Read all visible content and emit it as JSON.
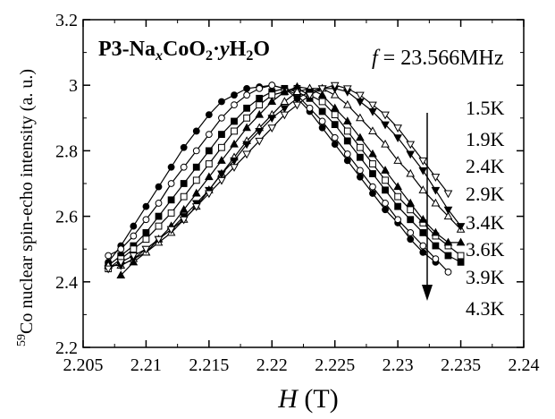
{
  "chart_data": {
    "type": "line",
    "title_parts": {
      "a": "P3-Na",
      "x": "x",
      "b": "CoO",
      "two": "2",
      "dot": "·",
      "y": "y",
      "h": "H",
      "two2": "2",
      "o": "O"
    },
    "frequency_label": {
      "f": "f",
      "rest": " = 23.566MHz"
    },
    "xlabel": {
      "H": "H",
      "unit": " (T)"
    },
    "ylabel": {
      "sup": "59",
      "text": "Co nuclear spin-echo intensity (a. u.)"
    },
    "xlim": [
      2.205,
      2.24
    ],
    "ylim": [
      2.2,
      3.2
    ],
    "x_ticks": [
      "2.205",
      "2.21",
      "2.215",
      "2.22",
      "2.225",
      "2.23",
      "2.235",
      "2.24"
    ],
    "y_ticks": [
      "2.2",
      "2.4",
      "2.6",
      "2.8",
      "3",
      "3.2"
    ],
    "temperature_labels": [
      "1.5K",
      "1.9K",
      "2.4K",
      "2.9K",
      "3.4K",
      "3.6K",
      "3.9K",
      "4.3K"
    ],
    "arrow": "decreasing temperature order along labels",
    "series": [
      {
        "name": "1.5K",
        "marker": "circle",
        "filled": true,
        "x": [
          2.207,
          2.208,
          2.209,
          2.21,
          2.211,
          2.212,
          2.213,
          2.214,
          2.215,
          2.216,
          2.217,
          2.218,
          2.219,
          2.22,
          2.221,
          2.222,
          2.223,
          2.224,
          2.225,
          2.226,
          2.227,
          2.228,
          2.229,
          2.23,
          2.231,
          2.232,
          2.233
        ],
        "y": [
          2.46,
          2.51,
          2.57,
          2.63,
          2.69,
          2.75,
          2.81,
          2.86,
          2.91,
          2.95,
          2.97,
          2.99,
          2.995,
          3.0,
          2.99,
          2.96,
          2.92,
          2.87,
          2.82,
          2.77,
          2.72,
          2.67,
          2.62,
          2.58,
          2.53,
          2.49,
          2.46
        ]
      },
      {
        "name": "1.9K",
        "marker": "circle",
        "filled": false,
        "x": [
          2.207,
          2.208,
          2.209,
          2.21,
          2.211,
          2.212,
          2.213,
          2.214,
          2.215,
          2.216,
          2.217,
          2.218,
          2.219,
          2.22,
          2.221,
          2.222,
          2.223,
          2.224,
          2.225,
          2.226,
          2.227,
          2.228,
          2.229,
          2.23,
          2.231,
          2.232,
          2.233,
          2.234
        ],
        "y": [
          2.48,
          2.5,
          2.54,
          2.59,
          2.64,
          2.7,
          2.75,
          2.8,
          2.85,
          2.9,
          2.94,
          2.97,
          2.99,
          3.0,
          2.99,
          2.97,
          2.93,
          2.89,
          2.84,
          2.79,
          2.74,
          2.69,
          2.64,
          2.59,
          2.55,
          2.51,
          2.47,
          2.43
        ]
      },
      {
        "name": "2.4K",
        "marker": "square",
        "filled": true,
        "x": [
          2.207,
          2.208,
          2.209,
          2.21,
          2.211,
          2.212,
          2.213,
          2.214,
          2.215,
          2.216,
          2.217,
          2.218,
          2.219,
          2.22,
          2.221,
          2.222,
          2.223,
          2.224,
          2.225,
          2.226,
          2.227,
          2.228,
          2.229,
          2.23,
          2.231,
          2.232,
          2.233,
          2.234,
          2.235
        ],
        "y": [
          2.45,
          2.48,
          2.51,
          2.55,
          2.6,
          2.65,
          2.7,
          2.75,
          2.8,
          2.85,
          2.89,
          2.93,
          2.96,
          2.98,
          2.99,
          2.98,
          2.96,
          2.92,
          2.88,
          2.83,
          2.78,
          2.73,
          2.68,
          2.63,
          2.59,
          2.55,
          2.51,
          2.48,
          2.46
        ]
      },
      {
        "name": "2.9K",
        "marker": "square",
        "filled": false,
        "x": [
          2.207,
          2.208,
          2.209,
          2.21,
          2.211,
          2.212,
          2.213,
          2.214,
          2.215,
          2.216,
          2.217,
          2.218,
          2.219,
          2.22,
          2.221,
          2.222,
          2.223,
          2.224,
          2.225,
          2.226,
          2.227,
          2.228,
          2.229,
          2.23,
          2.231,
          2.232,
          2.233,
          2.234,
          2.235
        ],
        "y": [
          2.44,
          2.47,
          2.5,
          2.53,
          2.57,
          2.61,
          2.66,
          2.71,
          2.76,
          2.81,
          2.86,
          2.9,
          2.94,
          2.97,
          2.98,
          2.99,
          2.97,
          2.95,
          2.91,
          2.86,
          2.81,
          2.76,
          2.71,
          2.66,
          2.62,
          2.58,
          2.54,
          2.51,
          2.48
        ]
      },
      {
        "name": "3.4K",
        "marker": "triangle",
        "filled": true,
        "x": [
          2.208,
          2.209,
          2.21,
          2.211,
          2.212,
          2.213,
          2.214,
          2.215,
          2.216,
          2.217,
          2.218,
          2.219,
          2.22,
          2.221,
          2.222,
          2.223,
          2.224,
          2.225,
          2.226,
          2.227,
          2.228,
          2.229,
          2.23,
          2.231,
          2.232,
          2.233,
          2.234,
          2.235
        ],
        "y": [
          2.42,
          2.46,
          2.49,
          2.53,
          2.57,
          2.62,
          2.67,
          2.72,
          2.77,
          2.82,
          2.87,
          2.91,
          2.95,
          2.98,
          2.995,
          2.99,
          2.97,
          2.93,
          2.89,
          2.84,
          2.79,
          2.74,
          2.69,
          2.64,
          2.59,
          2.55,
          2.52,
          2.52
        ]
      },
      {
        "name": "3.6K",
        "marker": "triangle",
        "filled": false,
        "x": [
          2.207,
          2.208,
          2.209,
          2.21,
          2.211,
          2.212,
          2.213,
          2.214,
          2.215,
          2.216,
          2.217,
          2.218,
          2.219,
          2.22,
          2.221,
          2.222,
          2.223,
          2.224,
          2.225,
          2.226,
          2.227,
          2.228,
          2.229,
          2.23,
          2.231,
          2.232,
          2.233,
          2.234,
          2.235
        ],
        "y": [
          2.45,
          2.45,
          2.47,
          2.49,
          2.52,
          2.55,
          2.59,
          2.63,
          2.68,
          2.73,
          2.78,
          2.83,
          2.87,
          2.91,
          2.95,
          2.98,
          2.99,
          2.99,
          2.97,
          2.94,
          2.9,
          2.86,
          2.82,
          2.77,
          2.73,
          2.68,
          2.64,
          2.6,
          2.56
        ]
      },
      {
        "name": "3.9K",
        "marker": "triangle-down",
        "filled": true,
        "x": [
          2.208,
          2.209,
          2.21,
          2.211,
          2.212,
          2.213,
          2.214,
          2.215,
          2.216,
          2.217,
          2.218,
          2.219,
          2.22,
          2.221,
          2.222,
          2.223,
          2.224,
          2.225,
          2.226,
          2.227,
          2.228,
          2.229,
          2.23,
          2.231,
          2.232,
          2.233,
          2.234,
          2.235
        ],
        "y": [
          2.45,
          2.47,
          2.5,
          2.53,
          2.56,
          2.6,
          2.64,
          2.68,
          2.73,
          2.77,
          2.82,
          2.86,
          2.9,
          2.93,
          2.96,
          2.98,
          2.99,
          2.99,
          2.98,
          2.95,
          2.92,
          2.88,
          2.84,
          2.79,
          2.74,
          2.68,
          2.62,
          2.57
        ]
      },
      {
        "name": "4.3K",
        "marker": "triangle-down",
        "filled": false,
        "x": [
          2.207,
          2.208,
          2.209,
          2.21,
          2.211,
          2.212,
          2.213,
          2.214,
          2.215,
          2.216,
          2.217,
          2.218,
          2.219,
          2.22,
          2.221,
          2.222,
          2.223,
          2.224,
          2.225,
          2.226,
          2.227,
          2.228,
          2.229,
          2.23,
          2.231,
          2.232,
          2.233,
          2.234
        ],
        "y": [
          2.44,
          2.46,
          2.48,
          2.5,
          2.53,
          2.56,
          2.59,
          2.63,
          2.67,
          2.71,
          2.75,
          2.79,
          2.83,
          2.87,
          2.91,
          2.94,
          2.97,
          2.99,
          3.0,
          2.99,
          2.97,
          2.94,
          2.91,
          2.87,
          2.82,
          2.77,
          2.72,
          2.67
        ]
      }
    ]
  }
}
